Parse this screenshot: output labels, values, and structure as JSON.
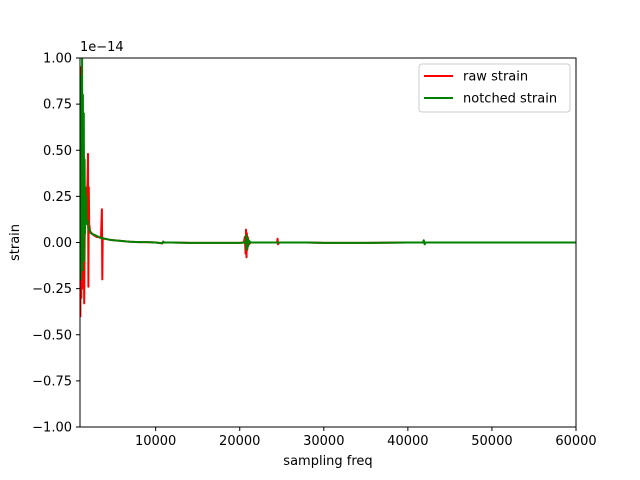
{
  "chart_data": {
    "type": "line",
    "title": "",
    "xlabel": "sampling freq",
    "ylabel": "strain",
    "offset_label": "1e−14",
    "xlim": [
      1000,
      60000
    ],
    "ylim": [
      -1.0,
      1.0
    ],
    "xticks": [
      10000,
      20000,
      30000,
      40000,
      50000,
      60000
    ],
    "xtick_labels": [
      "10000",
      "20000",
      "30000",
      "40000",
      "50000",
      "60000"
    ],
    "yticks": [
      -1.0,
      -0.75,
      -0.5,
      -0.25,
      0.0,
      0.25,
      0.5,
      0.75,
      1.0
    ],
    "ytick_labels": [
      "−1.00",
      "−0.75",
      "−0.50",
      "−0.25",
      "0.00",
      "0.25",
      "0.50",
      "0.75",
      "1.00"
    ],
    "grid": false,
    "legend_position": "top-right",
    "series": [
      {
        "name": "raw strain",
        "color": "#ff0000",
        "x": [
          1000,
          1050,
          1100,
          1150,
          1200,
          1250,
          1300,
          1400,
          1500,
          1600,
          1700,
          1800,
          1900,
          1950,
          2000,
          2050,
          2100,
          2200,
          2400,
          2600,
          2800,
          3000,
          3200,
          3400,
          3500,
          3600,
          3650,
          3700,
          3800,
          4000,
          4500,
          5000,
          6000,
          7000,
          8000,
          9000,
          10000,
          10800,
          10900,
          11000,
          12000,
          14000,
          16000,
          18000,
          20000,
          20500,
          20600,
          20700,
          20750,
          20800,
          20850,
          20900,
          20950,
          21000,
          21100,
          21300,
          22000,
          23000,
          24000,
          24450,
          24500,
          24550,
          24700,
          26000,
          28000,
          30000,
          35000,
          40000,
          41800,
          41900,
          42000,
          42100,
          45000,
          50000,
          55000,
          60000
        ],
        "y": [
          0.02,
          -0.4,
          0.95,
          -0.3,
          0.7,
          -0.25,
          0.4,
          0.3,
          -0.33,
          0.25,
          0.2,
          0.15,
          0.35,
          0.48,
          -0.24,
          0.3,
          0.1,
          0.06,
          0.05,
          0.04,
          0.035,
          0.03,
          0.03,
          0.025,
          0.03,
          0.18,
          -0.2,
          0.025,
          0.02,
          0.02,
          0.015,
          0.012,
          0.008,
          0.004,
          0.002,
          0.002,
          0.0,
          -0.005,
          0.005,
          0.0,
          0.0,
          -0.002,
          -0.002,
          -0.002,
          -0.002,
          0.0,
          0.03,
          -0.06,
          0.07,
          -0.08,
          0.05,
          -0.04,
          0.03,
          0.02,
          -0.01,
          0.0,
          0.0,
          0.0,
          0.0,
          0.0,
          0.02,
          -0.01,
          0.0,
          0.0,
          0.0,
          -0.002,
          -0.002,
          0.0,
          0.0,
          0.01,
          -0.008,
          0.0,
          0.0,
          0.0,
          0.0,
          0.0
        ]
      },
      {
        "name": "notched strain",
        "color": "#008000",
        "x": [
          1000,
          1050,
          1100,
          1150,
          1200,
          1250,
          1300,
          1350,
          1400,
          1450,
          1500,
          1550,
          1600,
          1650,
          1700,
          1750,
          1800,
          1900,
          2000,
          2100,
          2200,
          2300,
          2500,
          2800,
          3000,
          3500,
          4000,
          4500,
          5000,
          6000,
          7000,
          8000,
          9000,
          10000,
          10800,
          10900,
          11000,
          12000,
          14000,
          16000,
          18000,
          20000,
          20700,
          20750,
          20800,
          20850,
          20900,
          20950,
          21000,
          21100,
          21300,
          22000,
          24000,
          26000,
          28000,
          30000,
          35000,
          40000,
          41800,
          41900,
          42000,
          42100,
          45000,
          50000,
          55000,
          60000
        ],
        "y": [
          0.05,
          0.6,
          -0.2,
          0.9,
          -0.1,
          1.0,
          -0.15,
          0.8,
          0.05,
          0.7,
          -0.1,
          0.45,
          0.05,
          0.3,
          0.12,
          0.25,
          0.1,
          0.12,
          0.08,
          0.07,
          0.06,
          0.05,
          0.045,
          0.04,
          0.035,
          0.025,
          0.02,
          0.015,
          0.012,
          0.008,
          0.004,
          0.002,
          0.002,
          0.0,
          -0.004,
          0.004,
          0.0,
          0.0,
          -0.002,
          -0.002,
          -0.002,
          -0.002,
          0.0,
          0.04,
          -0.04,
          0.03,
          -0.03,
          0.02,
          -0.02,
          0.01,
          0.0,
          0.0,
          0.0,
          0.0,
          0.0,
          -0.002,
          -0.002,
          0.0,
          0.0,
          0.012,
          -0.01,
          0.0,
          0.0,
          0.0,
          0.0,
          0.0
        ]
      }
    ]
  }
}
